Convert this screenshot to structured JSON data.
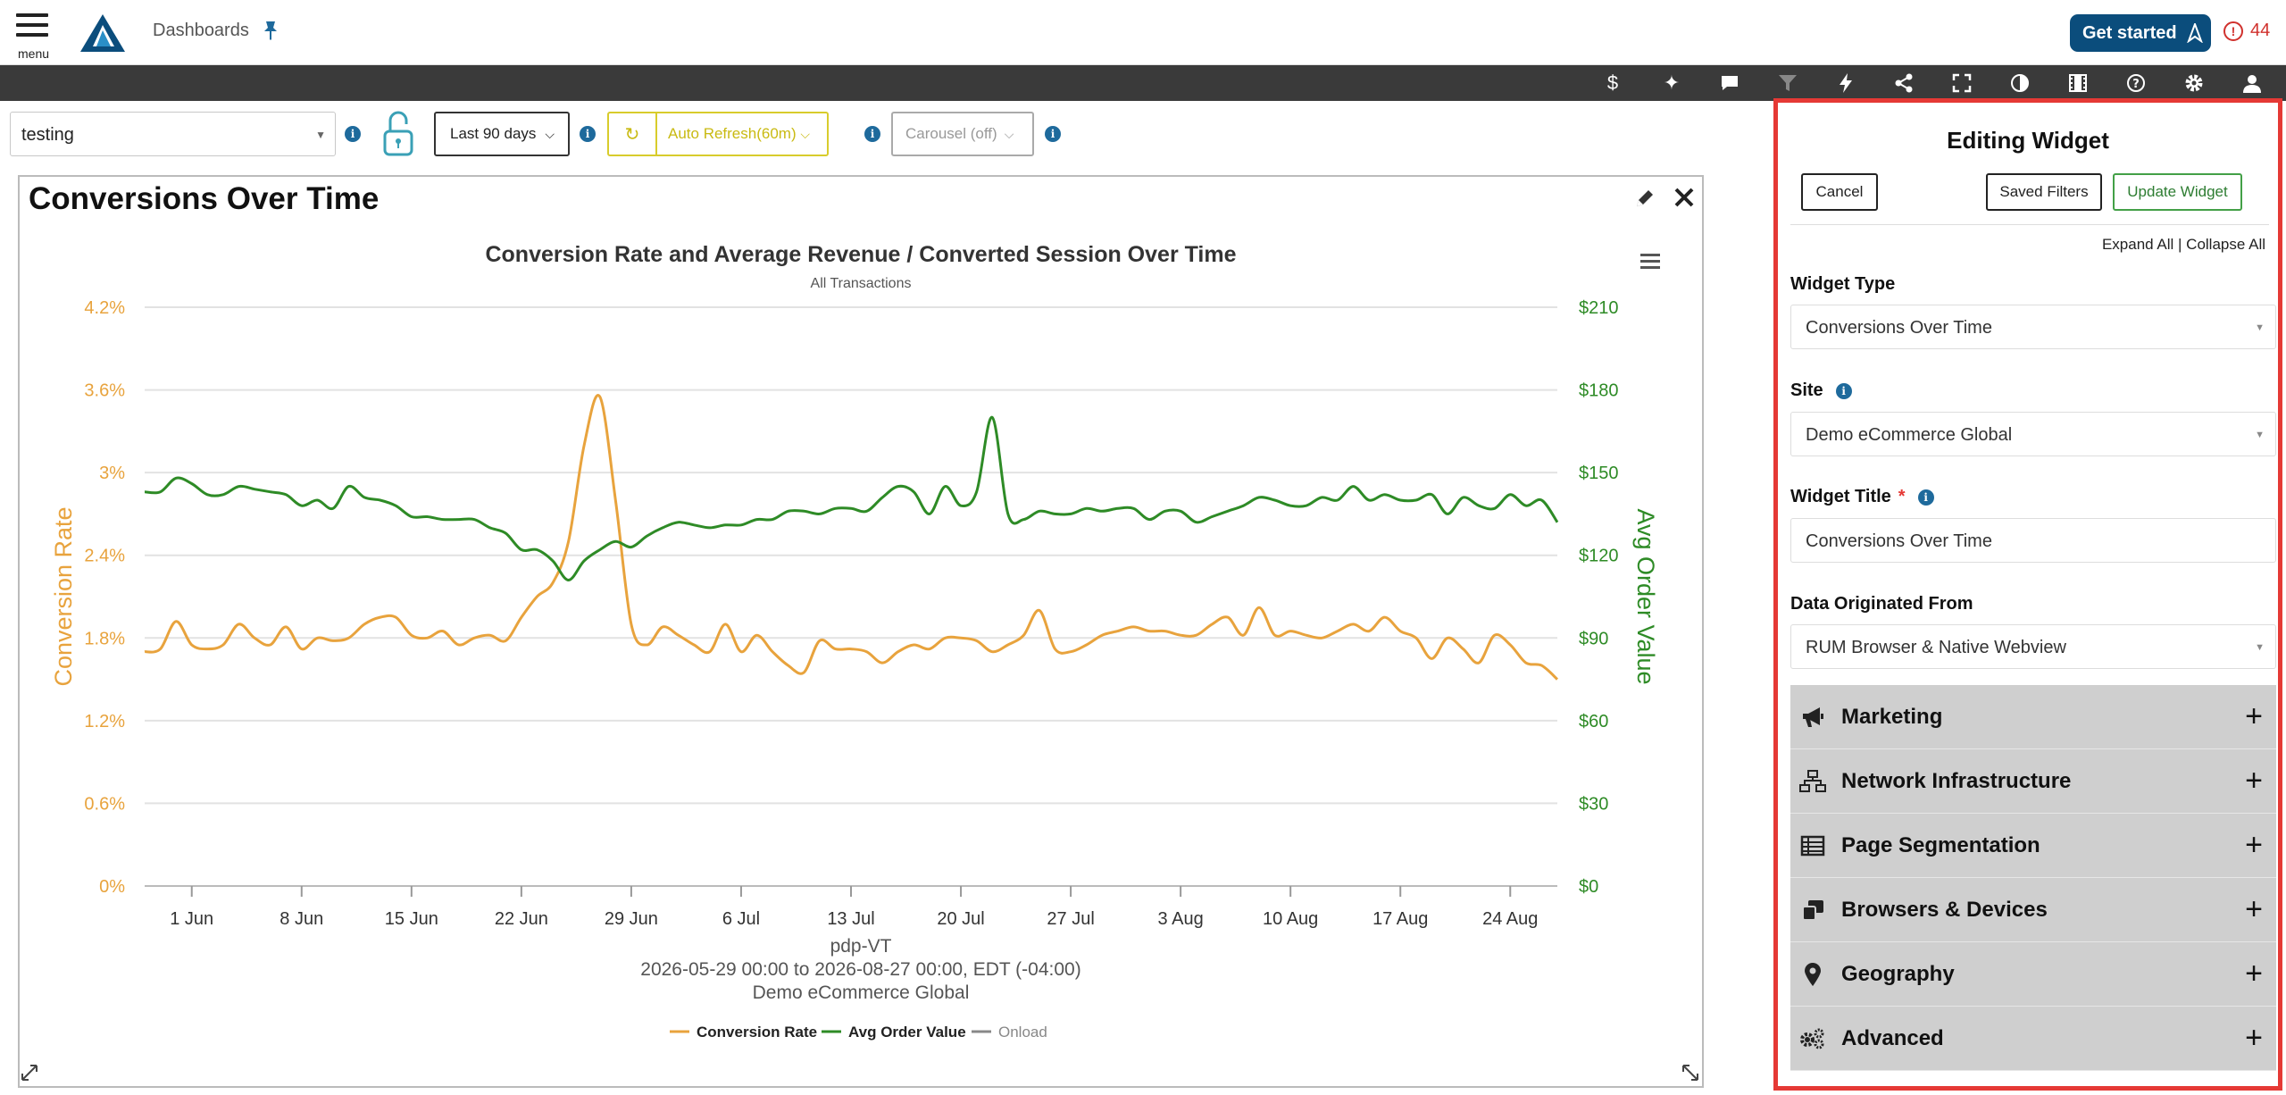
{
  "header": {
    "menu_label": "menu",
    "breadcrumb": "Dashboards",
    "get_started": "Get started",
    "alert_count": "44"
  },
  "toolbar": {
    "icons": [
      "dollar-icon",
      "sparkle-icon",
      "comment-icon",
      "filter-icon",
      "lightning-icon",
      "share-icon",
      "fullscreen-icon",
      "contrast-icon",
      "film-icon",
      "help-icon",
      "settings-icon",
      "user-icon"
    ]
  },
  "filters": {
    "dashboard_select": "testing",
    "date_range": "Last 90 days",
    "auto_refresh": "Auto Refresh(60m)",
    "carousel": "Carousel (off)"
  },
  "widget": {
    "title": "Conversions Over Time"
  },
  "chart_data": {
    "type": "line",
    "title": "Conversion Rate and Average Revenue / Converted Session Over Time",
    "subtitle": "All Transactions",
    "ylabel_left": "Conversion Rate",
    "ylabel_right": "Avg Order Value",
    "y_left_ticks": [
      "0%",
      "0.6%",
      "1.2%",
      "1.8%",
      "2.4%",
      "3%",
      "3.6%",
      "4.2%"
    ],
    "y_right_ticks": [
      "$0",
      "$30",
      "$60",
      "$90",
      "$120",
      "$150",
      "$180",
      "$210"
    ],
    "ylim_left": [
      0,
      4.2
    ],
    "ylim_right": [
      0,
      210
    ],
    "x_range_days": [
      0,
      90
    ],
    "x_ticks": [
      "1 Jun",
      "8 Jun",
      "15 Jun",
      "22 Jun",
      "29 Jun",
      "6 Jul",
      "13 Jul",
      "20 Jul",
      "27 Jul",
      "3 Aug",
      "10 Aug",
      "17 Aug",
      "24 Aug"
    ],
    "x_tick_days": [
      3,
      10,
      17,
      24,
      31,
      38,
      45,
      52,
      59,
      66,
      73,
      80,
      87
    ],
    "footer_lines": [
      "pdp-VT",
      "2026-05-29 00:00 to 2026-08-27 00:00, EDT (-04:00)",
      "Demo eCommerce Global"
    ],
    "legend": [
      "Conversion Rate",
      "Avg Order Value",
      "Onload"
    ],
    "grid": true,
    "series": [
      {
        "name": "Conversion Rate",
        "axis": "left",
        "color": "#E8A33D",
        "x": [
          0,
          1,
          2,
          3,
          4,
          5,
          6,
          7,
          8,
          9,
          10,
          11,
          12,
          13,
          14,
          15,
          16,
          17,
          18,
          19,
          20,
          21,
          22,
          23,
          24,
          25,
          26,
          27,
          28,
          29,
          30,
          31,
          32,
          33,
          34,
          35,
          36,
          37,
          38,
          39,
          40,
          41,
          42,
          43,
          44,
          45,
          46,
          47,
          48,
          49,
          50,
          51,
          52,
          53,
          54,
          55,
          56,
          57,
          58,
          59,
          60,
          61,
          62,
          63,
          64,
          65,
          66,
          67,
          68,
          69,
          70,
          71,
          72,
          73,
          74,
          75,
          76,
          77,
          78,
          79,
          80,
          81,
          82,
          83,
          84,
          85,
          86,
          87,
          88,
          89,
          90
        ],
        "y": [
          1.7,
          1.72,
          1.92,
          1.75,
          1.72,
          1.75,
          1.9,
          1.8,
          1.75,
          1.88,
          1.72,
          1.8,
          1.78,
          1.8,
          1.9,
          1.95,
          1.95,
          1.82,
          1.8,
          1.85,
          1.75,
          1.8,
          1.82,
          1.78,
          1.95,
          2.1,
          2.2,
          2.5,
          3.2,
          3.55,
          2.8,
          1.9,
          1.75,
          1.88,
          1.82,
          1.75,
          1.7,
          1.9,
          1.7,
          1.82,
          1.7,
          1.6,
          1.55,
          1.78,
          1.72,
          1.72,
          1.7,
          1.62,
          1.7,
          1.75,
          1.72,
          1.8,
          1.8,
          1.78,
          1.7,
          1.75,
          1.82,
          2.0,
          1.72,
          1.7,
          1.75,
          1.82,
          1.85,
          1.88,
          1.85,
          1.85,
          1.82,
          1.82,
          1.9,
          1.95,
          1.82,
          2.02,
          1.82,
          1.85,
          1.82,
          1.8,
          1.85,
          1.9,
          1.85,
          1.95,
          1.85,
          1.8,
          1.65,
          1.8,
          1.72,
          1.62,
          1.82,
          1.75,
          1.62,
          1.6,
          1.5
        ],
        "smooth": true
      },
      {
        "name": "Avg Order Value",
        "axis": "right",
        "color": "#2E8B26",
        "x": [
          0,
          1,
          2,
          3,
          4,
          5,
          6,
          7,
          8,
          9,
          10,
          11,
          12,
          13,
          14,
          15,
          16,
          17,
          18,
          19,
          20,
          21,
          22,
          23,
          24,
          25,
          26,
          27,
          28,
          29,
          30,
          31,
          32,
          33,
          34,
          35,
          36,
          37,
          38,
          39,
          40,
          41,
          42,
          43,
          44,
          45,
          46,
          47,
          48,
          49,
          50,
          51,
          52,
          53,
          54,
          55,
          56,
          57,
          58,
          59,
          60,
          61,
          62,
          63,
          64,
          65,
          66,
          67,
          68,
          69,
          70,
          71,
          72,
          73,
          74,
          75,
          76,
          77,
          78,
          79,
          80,
          81,
          82,
          83,
          84,
          85,
          86,
          87,
          88,
          89,
          90
        ],
        "y": [
          143,
          143,
          148,
          146,
          142,
          142,
          145,
          144,
          143,
          142,
          138,
          140,
          137,
          145,
          141,
          140,
          138,
          134,
          134,
          133,
          133,
          133,
          130,
          128,
          122,
          122,
          118,
          111,
          118,
          122,
          125,
          123,
          127,
          130,
          132,
          131,
          130,
          131,
          131,
          133,
          133,
          136,
          136,
          135,
          137,
          137,
          136,
          141,
          145,
          143,
          135,
          145,
          138,
          143,
          170,
          135,
          133,
          136,
          135,
          135,
          137,
          136,
          137,
          137,
          133,
          136,
          136,
          132,
          134,
          136,
          138,
          141,
          140,
          138,
          138,
          141,
          140,
          145,
          140,
          142,
          140,
          140,
          142,
          135,
          141,
          138,
          137,
          142,
          138,
          140,
          132
        ],
        "smooth": true
      }
    ]
  },
  "panel": {
    "title": "Editing Widget",
    "cancel": "Cancel",
    "saved_filters": "Saved Filters",
    "update_widget": "Update Widget",
    "expand_all": "Expand All",
    "collapse_all": "Collapse All",
    "expand_sep": " | ",
    "widget_type_label": "Widget Type",
    "widget_type_value": "Conversions Over Time",
    "site_label": "Site",
    "site_value": "Demo eCommerce Global",
    "widget_title_label": "Widget Title",
    "widget_title_required": "*",
    "widget_title_value": "Conversions Over Time",
    "data_origin_label": "Data Originated From",
    "data_origin_value": "RUM Browser & Native Webview",
    "sections": [
      {
        "label": "Marketing",
        "icon": "megaphone-icon"
      },
      {
        "label": "Network Infrastructure",
        "icon": "network-icon"
      },
      {
        "label": "Page Segmentation",
        "icon": "table-icon"
      },
      {
        "label": "Browsers & Devices",
        "icon": "devices-icon"
      },
      {
        "label": "Geography",
        "icon": "map-pin-icon"
      },
      {
        "label": "Advanced",
        "icon": "gears-icon"
      }
    ]
  }
}
